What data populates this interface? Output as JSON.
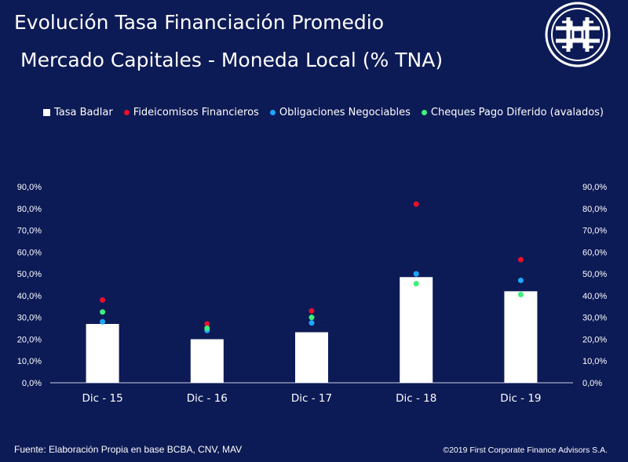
{
  "header": {
    "title_line1": "Evolución Tasa Financiación Promedio",
    "title_line2": "Mercado Capitales - Moneda Local (% TNA)"
  },
  "footer": {
    "source": "Fuente: Elaboración Propia en base BCBA, CNV, MAV",
    "copyright": "©2019 First Corporate Finance Advisors S.A."
  },
  "colors": {
    "background": "#0c1a56",
    "bar": "#ffffff",
    "fideicomisos": "#e8102a",
    "obligaciones": "#1ea7ff",
    "cheques": "#3ff07a",
    "axis": "#c9cde0"
  },
  "chart_data": {
    "type": "bar",
    "categories": [
      "Dic - 15",
      "Dic - 16",
      "Dic - 17",
      "Dic - 18",
      "Dic - 19"
    ],
    "ylim": [
      0,
      90
    ],
    "y_ticks": [
      "0,0%",
      "10,0%",
      "20,0%",
      "30,0%",
      "40,0%",
      "50,0%",
      "60,0%",
      "70,0%",
      "80,0%",
      "90,0%"
    ],
    "legend": [
      {
        "name": "Tasa Badlar",
        "marker": "square"
      },
      {
        "name": "Fideicomisos Financieros",
        "marker": "dot"
      },
      {
        "name": "Obligaciones Negociables",
        "marker": "dot"
      },
      {
        "name": "Cheques Pago Diferido (avalados)",
        "marker": "dot"
      }
    ],
    "series": [
      {
        "name": "Tasa Badlar",
        "kind": "bar",
        "values": [
          27,
          20,
          23.2,
          48.5,
          42
        ]
      },
      {
        "name": "Fideicomisos Financieros",
        "kind": "dot",
        "values": [
          38,
          27,
          33,
          82,
          56.5
        ]
      },
      {
        "name": "Obligaciones Negociables",
        "kind": "dot",
        "values": [
          28,
          24,
          27.5,
          50,
          47
        ]
      },
      {
        "name": "Cheques Pago Diferido (avalados)",
        "kind": "dot",
        "values": [
          32.5,
          25,
          30,
          45.5,
          40.5
        ]
      }
    ]
  }
}
